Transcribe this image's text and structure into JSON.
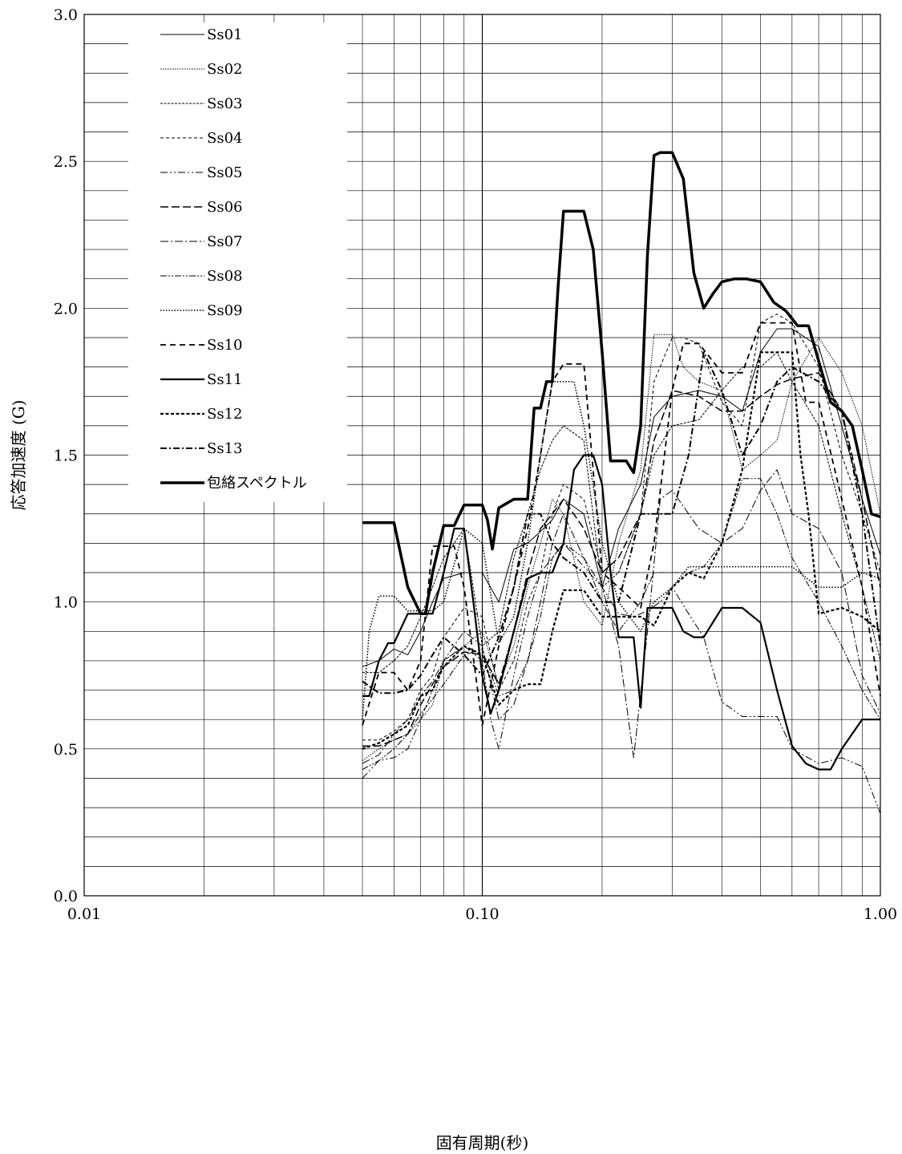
{
  "chart_data": {
    "type": "line",
    "title": "",
    "xlabel": "固有周期(秒)",
    "ylabel": "応答加速度 (G)",
    "x_scale": "log",
    "xlim": [
      0.01,
      1.0
    ],
    "ylim": [
      0,
      3.0
    ],
    "grid": true,
    "legend_position": "top-left",
    "x_tick_labels": [
      {
        "value": 0.01,
        "label": "0.01"
      },
      {
        "value": 0.1,
        "label": "0.10"
      },
      {
        "value": 1.0,
        "label": "1.00"
      }
    ],
    "y_tick_labels": [
      {
        "value": 0,
        "label": "0.0"
      },
      {
        "value": 0.5,
        "label": "0.5"
      },
      {
        "value": 1.0,
        "label": "1.0"
      },
      {
        "value": 1.5,
        "label": "1.5"
      },
      {
        "value": 2.0,
        "label": "2.0"
      },
      {
        "value": 2.5,
        "label": "2.5"
      },
      {
        "value": 3.0,
        "label": "3.0"
      }
    ],
    "series": [
      {
        "name": "Ss01",
        "color": "#000000",
        "x": [
          0.05,
          0.055,
          0.06,
          0.065,
          0.07,
          0.075,
          0.08,
          0.09,
          0.1,
          0.11,
          0.12,
          0.13,
          0.14,
          0.15,
          0.16,
          0.18,
          0.2,
          0.22,
          0.25,
          0.27,
          0.3,
          0.35,
          0.4,
          0.45,
          0.5,
          0.55,
          0.6,
          0.7,
          0.8,
          0.9,
          1.0
        ],
        "y": [
          0.78,
          0.8,
          0.84,
          0.82,
          0.9,
          1.0,
          1.08,
          1.1,
          1.1,
          1.0,
          1.18,
          1.2,
          1.24,
          1.28,
          1.35,
          1.3,
          1.05,
          1.25,
          1.4,
          1.63,
          1.7,
          1.72,
          1.7,
          1.65,
          1.85,
          1.93,
          1.93,
          1.87,
          1.6,
          1.35,
          1.16
        ]
      },
      {
        "name": "Ss02",
        "color": "#000000",
        "x": [
          0.05,
          0.055,
          0.06,
          0.065,
          0.07,
          0.075,
          0.08,
          0.09,
          0.1,
          0.11,
          0.12,
          0.13,
          0.14,
          0.15,
          0.16,
          0.18,
          0.2,
          0.22,
          0.25,
          0.27,
          0.3,
          0.32,
          0.35,
          0.4,
          0.45,
          0.5,
          0.55,
          0.6,
          0.7,
          0.8,
          0.9,
          1.0
        ],
        "y": [
          0.46,
          0.5,
          0.53,
          0.55,
          0.6,
          0.65,
          0.8,
          0.85,
          0.9,
          0.72,
          0.85,
          1.05,
          1.2,
          1.35,
          1.3,
          1.0,
          0.92,
          1.2,
          1.45,
          1.91,
          1.91,
          1.8,
          1.75,
          1.72,
          1.45,
          1.5,
          1.55,
          1.75,
          1.9,
          1.78,
          1.6,
          1.3
        ]
      },
      {
        "name": "Ss03",
        "color": "#000000",
        "x": [
          0.05,
          0.055,
          0.06,
          0.065,
          0.07,
          0.075,
          0.08,
          0.085,
          0.09,
          0.1,
          0.11,
          0.12,
          0.13,
          0.14,
          0.15,
          0.16,
          0.18,
          0.2,
          0.22,
          0.25,
          0.27,
          0.3,
          0.35,
          0.4,
          0.45,
          0.5,
          0.55,
          0.6,
          0.7,
          0.8,
          0.9,
          1.0
        ],
        "y": [
          0.76,
          0.76,
          0.8,
          0.85,
          0.95,
          1.05,
          1.15,
          1.2,
          1.25,
          0.85,
          0.9,
          1.15,
          1.3,
          1.45,
          1.55,
          1.6,
          1.55,
          1.05,
          1.1,
          1.3,
          1.5,
          1.6,
          1.62,
          1.72,
          1.8,
          1.8,
          1.85,
          1.75,
          1.6,
          1.3,
          1.05,
          0.8
        ]
      },
      {
        "name": "Ss04",
        "color": "#000000",
        "x": [
          0.05,
          0.055,
          0.06,
          0.065,
          0.07,
          0.075,
          0.08,
          0.09,
          0.1,
          0.11,
          0.12,
          0.13,
          0.14,
          0.15,
          0.16,
          0.18,
          0.2,
          0.22,
          0.25,
          0.27,
          0.3,
          0.32,
          0.35,
          0.4,
          0.45,
          0.5,
          0.55,
          0.6,
          0.7,
          0.8,
          0.9,
          1.0
        ],
        "y": [
          0.53,
          0.53,
          0.56,
          0.6,
          0.7,
          0.75,
          0.88,
          0.98,
          0.95,
          0.7,
          0.8,
          1.0,
          1.1,
          1.3,
          1.4,
          1.35,
          1.1,
          1.1,
          1.3,
          1.75,
          1.9,
          1.9,
          1.88,
          1.68,
          1.6,
          1.95,
          1.98,
          1.95,
          1.8,
          1.5,
          1.3,
          1.1
        ]
      },
      {
        "name": "Ss05",
        "color": "#000000",
        "x": [
          0.05,
          0.055,
          0.06,
          0.065,
          0.07,
          0.075,
          0.08,
          0.09,
          0.1,
          0.105,
          0.11,
          0.12,
          0.13,
          0.14,
          0.15,
          0.16,
          0.18,
          0.2,
          0.22,
          0.24,
          0.26,
          0.28,
          0.3,
          0.33,
          0.36,
          0.4,
          0.45,
          0.5,
          0.55,
          0.6,
          0.7,
          0.8,
          0.9,
          1.0
        ],
        "y": [
          0.4,
          0.46,
          0.47,
          0.5,
          0.6,
          0.7,
          0.8,
          0.85,
          0.8,
          0.6,
          0.5,
          0.75,
          0.95,
          1.1,
          1.15,
          1.2,
          1.12,
          1.05,
          0.96,
          0.95,
          0.97,
          1.0,
          1.05,
          0.96,
          0.88,
          0.66,
          0.61,
          0.61,
          0.61,
          0.5,
          0.45,
          0.47,
          0.44,
          0.28
        ]
      },
      {
        "name": "Ss06",
        "color": "#000000",
        "x": [
          0.05,
          0.055,
          0.06,
          0.065,
          0.07,
          0.075,
          0.08,
          0.09,
          0.1,
          0.11,
          0.12,
          0.13,
          0.14,
          0.15,
          0.16,
          0.18,
          0.2,
          0.22,
          0.25,
          0.27,
          0.3,
          0.35,
          0.4,
          0.45,
          0.5,
          0.55,
          0.6,
          0.7,
          0.8,
          0.9,
          1.0
        ],
        "y": [
          0.51,
          0.51,
          0.53,
          0.55,
          0.65,
          0.72,
          0.78,
          0.83,
          0.82,
          0.72,
          0.9,
          1.1,
          1.25,
          1.3,
          1.35,
          1.25,
          1.1,
          1.15,
          1.3,
          1.55,
          1.72,
          1.7,
          1.65,
          1.65,
          1.7,
          1.74,
          1.76,
          1.78,
          1.65,
          1.35,
          1.05
        ]
      },
      {
        "name": "Ss07",
        "color": "#000000",
        "x": [
          0.05,
          0.055,
          0.06,
          0.065,
          0.07,
          0.075,
          0.08,
          0.09,
          0.1,
          0.11,
          0.12,
          0.13,
          0.14,
          0.15,
          0.16,
          0.18,
          0.2,
          0.22,
          0.24,
          0.26,
          0.28,
          0.3,
          0.35,
          0.4,
          0.45,
          0.5,
          0.55,
          0.6,
          0.7,
          0.8,
          0.9,
          1.0
        ],
        "y": [
          0.45,
          0.48,
          0.55,
          0.6,
          0.68,
          0.73,
          0.8,
          0.9,
          0.85,
          0.6,
          0.65,
          0.8,
          1.0,
          1.2,
          1.3,
          1.15,
          1.05,
          0.85,
          0.47,
          0.9,
          1.35,
          1.38,
          1.25,
          1.2,
          1.25,
          1.38,
          1.45,
          1.3,
          1.25,
          1.1,
          0.75,
          0.62
        ]
      },
      {
        "name": "Ss08",
        "color": "#000000",
        "x": [
          0.05,
          0.055,
          0.06,
          0.065,
          0.07,
          0.075,
          0.08,
          0.09,
          0.1,
          0.11,
          0.12,
          0.13,
          0.14,
          0.15,
          0.16,
          0.18,
          0.2,
          0.22,
          0.25,
          0.27,
          0.3,
          0.33,
          0.36,
          0.4,
          0.45,
          0.5,
          0.55,
          0.6,
          0.7,
          0.8,
          0.9,
          1.0
        ],
        "y": [
          0.43,
          0.46,
          0.5,
          0.55,
          0.62,
          0.67,
          0.72,
          0.82,
          0.84,
          0.68,
          0.7,
          0.8,
          0.95,
          1.15,
          1.2,
          1.15,
          1.0,
          0.9,
          1.0,
          1.1,
          1.1,
          1.1,
          1.12,
          1.2,
          1.42,
          1.42,
          1.3,
          1.15,
          1.0,
          0.85,
          0.7,
          0.6
        ]
      },
      {
        "name": "Ss09",
        "color": "#000000",
        "x": [
          0.05,
          0.052,
          0.055,
          0.06,
          0.065,
          0.07,
          0.075,
          0.08,
          0.09,
          0.1,
          0.11,
          0.12,
          0.13,
          0.14,
          0.15,
          0.16,
          0.17,
          0.18,
          0.2,
          0.22,
          0.25,
          0.27,
          0.3,
          0.33,
          0.36,
          0.4,
          0.45,
          0.5,
          0.55,
          0.6,
          0.7,
          0.8,
          0.9,
          1.0
        ],
        "y": [
          0.6,
          0.9,
          1.02,
          1.02,
          0.97,
          0.97,
          0.97,
          1.0,
          1.25,
          1.2,
          0.86,
          0.95,
          1.2,
          1.5,
          1.75,
          1.75,
          1.75,
          1.6,
          1.2,
          1.0,
          0.9,
          1.0,
          1.05,
          1.12,
          1.12,
          1.12,
          1.12,
          1.12,
          1.12,
          1.12,
          1.05,
          1.05,
          1.1,
          1.08
        ]
      },
      {
        "name": "Ss10",
        "color": "#000000",
        "x": [
          0.05,
          0.055,
          0.06,
          0.065,
          0.07,
          0.075,
          0.08,
          0.085,
          0.09,
          0.1,
          0.11,
          0.12,
          0.13,
          0.14,
          0.15,
          0.16,
          0.18,
          0.2,
          0.22,
          0.25,
          0.27,
          0.3,
          0.32,
          0.35,
          0.4,
          0.45,
          0.5,
          0.55,
          0.6,
          0.65,
          0.7,
          0.8,
          0.9,
          1.0
        ],
        "y": [
          0.58,
          0.76,
          0.76,
          0.7,
          0.8,
          1.19,
          1.19,
          1.19,
          1.05,
          0.58,
          0.85,
          1.05,
          1.25,
          1.5,
          1.75,
          1.81,
          1.81,
          1.1,
          1.05,
          0.98,
          1.2,
          1.72,
          1.88,
          1.88,
          1.78,
          1.78,
          1.95,
          1.95,
          1.95,
          1.68,
          1.68,
          1.35,
          1.05,
          0.68
        ]
      },
      {
        "name": "Ss11",
        "color": "#000000",
        "x": [
          0.05,
          0.052,
          0.055,
          0.058,
          0.06,
          0.065,
          0.07,
          0.075,
          0.08,
          0.085,
          0.09,
          0.095,
          0.1,
          0.105,
          0.11,
          0.12,
          0.13,
          0.14,
          0.15,
          0.16,
          0.17,
          0.18,
          0.19,
          0.2,
          0.21,
          0.22,
          0.24,
          0.25,
          0.26,
          0.28,
          0.3,
          0.32,
          0.34,
          0.36,
          0.4,
          0.45,
          0.5,
          0.55,
          0.6,
          0.65,
          0.7,
          0.75,
          0.8,
          0.9,
          1.0
        ],
        "y": [
          0.68,
          0.68,
          0.8,
          0.86,
          0.86,
          0.96,
          0.96,
          0.96,
          1.1,
          1.25,
          1.25,
          1.0,
          0.75,
          0.62,
          0.7,
          0.9,
          1.08,
          1.1,
          1.1,
          1.2,
          1.45,
          1.5,
          1.5,
          1.4,
          1.1,
          0.88,
          0.88,
          0.64,
          0.98,
          0.98,
          0.98,
          0.9,
          0.88,
          0.88,
          0.98,
          0.98,
          0.93,
          0.7,
          0.51,
          0.45,
          0.43,
          0.43,
          0.5,
          0.6,
          0.6
        ]
      },
      {
        "name": "Ss12",
        "color": "#000000",
        "x": [
          0.05,
          0.055,
          0.06,
          0.065,
          0.07,
          0.075,
          0.08,
          0.09,
          0.1,
          0.11,
          0.12,
          0.13,
          0.14,
          0.15,
          0.16,
          0.18,
          0.2,
          0.22,
          0.25,
          0.27,
          0.3,
          0.33,
          0.36,
          0.4,
          0.45,
          0.5,
          0.55,
          0.6,
          0.63,
          0.66,
          0.7,
          0.8,
          0.9,
          1.0
        ],
        "y": [
          0.5,
          0.52,
          0.55,
          0.58,
          0.68,
          0.7,
          0.78,
          0.85,
          0.82,
          0.65,
          0.7,
          0.72,
          0.72,
          0.9,
          1.04,
          1.04,
          0.95,
          0.95,
          0.95,
          0.92,
          1.05,
          1.1,
          1.08,
          1.2,
          1.45,
          1.85,
          1.85,
          1.85,
          1.5,
          1.3,
          0.96,
          0.98,
          0.95,
          0.9
        ]
      },
      {
        "name": "Ss13",
        "color": "#000000",
        "x": [
          0.05,
          0.055,
          0.06,
          0.065,
          0.07,
          0.075,
          0.08,
          0.09,
          0.1,
          0.11,
          0.12,
          0.13,
          0.14,
          0.15,
          0.16,
          0.18,
          0.2,
          0.22,
          0.25,
          0.27,
          0.3,
          0.33,
          0.36,
          0.4,
          0.45,
          0.5,
          0.55,
          0.6,
          0.7,
          0.8,
          0.9,
          1.0
        ],
        "y": [
          0.73,
          0.69,
          0.69,
          0.7,
          0.75,
          0.82,
          0.88,
          0.82,
          0.75,
          0.88,
          1.05,
          1.3,
          1.3,
          1.2,
          1.15,
          1.1,
          1.0,
          1.0,
          1.3,
          1.3,
          1.3,
          1.5,
          1.85,
          1.72,
          1.5,
          1.6,
          1.75,
          1.8,
          1.75,
          1.65,
          1.3,
          0.85
        ]
      },
      {
        "name": "包絡スペクトル",
        "color": "#000000",
        "x": [
          0.05,
          0.055,
          0.057,
          0.06,
          0.062,
          0.065,
          0.07,
          0.072,
          0.075,
          0.08,
          0.085,
          0.09,
          0.095,
          0.1,
          0.103,
          0.106,
          0.11,
          0.12,
          0.125,
          0.13,
          0.135,
          0.14,
          0.145,
          0.15,
          0.155,
          0.16,
          0.17,
          0.18,
          0.19,
          0.2,
          0.21,
          0.22,
          0.23,
          0.24,
          0.25,
          0.26,
          0.27,
          0.28,
          0.3,
          0.32,
          0.34,
          0.36,
          0.38,
          0.4,
          0.43,
          0.46,
          0.5,
          0.54,
          0.58,
          0.62,
          0.66,
          0.7,
          0.75,
          0.8,
          0.85,
          0.9,
          0.95,
          1.0
        ],
        "y": [
          1.27,
          1.27,
          1.27,
          1.27,
          1.18,
          1.05,
          0.96,
          0.96,
          1.1,
          1.26,
          1.26,
          1.33,
          1.33,
          1.33,
          1.28,
          1.18,
          1.32,
          1.35,
          1.35,
          1.35,
          1.66,
          1.66,
          1.75,
          1.75,
          2.07,
          2.33,
          2.33,
          2.33,
          2.2,
          1.85,
          1.48,
          1.48,
          1.48,
          1.44,
          1.6,
          2.18,
          2.52,
          2.53,
          2.53,
          2.44,
          2.12,
          2.0,
          2.05,
          2.09,
          2.1,
          2.1,
          2.09,
          2.02,
          1.99,
          1.94,
          1.94,
          1.82,
          1.68,
          1.65,
          1.6,
          1.45,
          1.3,
          1.29
        ]
      }
    ]
  }
}
